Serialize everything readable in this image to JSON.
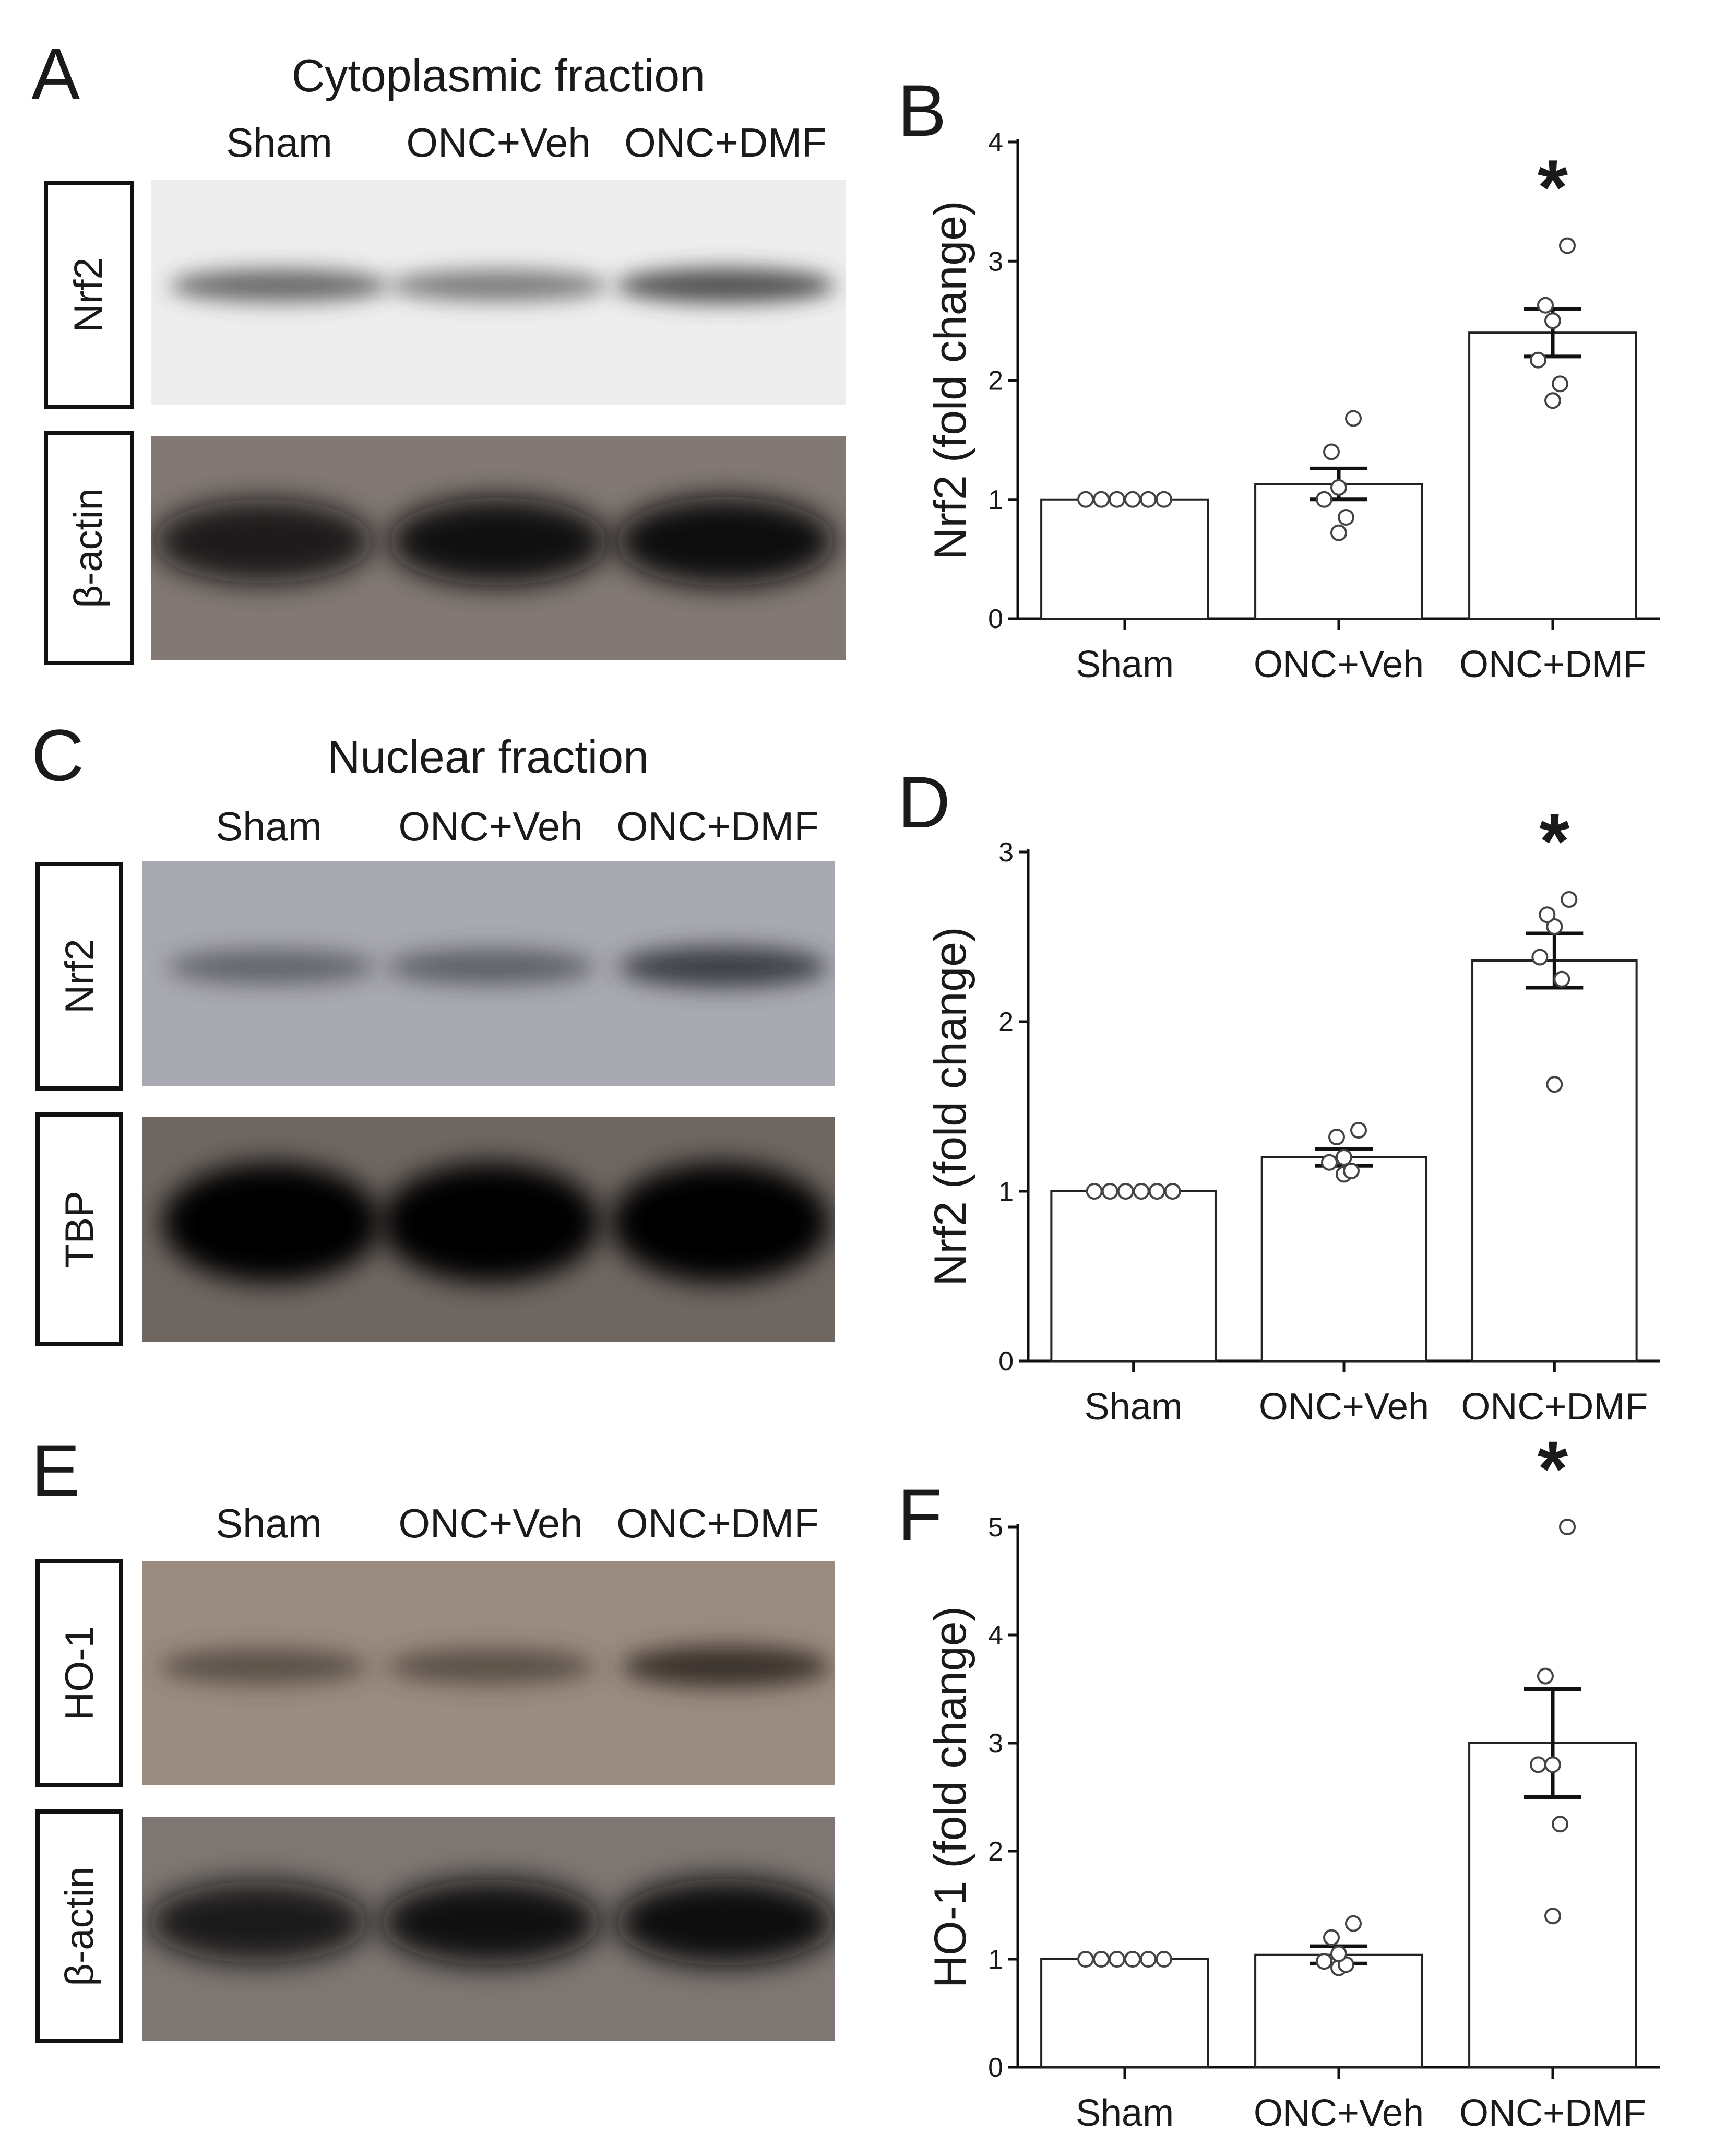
{
  "figure": {
    "panels": {
      "A": {
        "letter": "A",
        "title": "Cytoplasmic fraction",
        "lanes": [
          "Sham",
          "ONC+Veh",
          "ONC+DMF"
        ],
        "blots": [
          {
            "label": "Nrf2",
            "bg": "#ededed",
            "band": "#3c3c3c",
            "intensities": [
              0.6,
              0.45,
              0.8
            ]
          },
          {
            "label": "β-actin",
            "bg": "#837974",
            "band": "#0e0b0b",
            "intensities": [
              0.8,
              0.95,
              1.0
            ]
          }
        ]
      },
      "C": {
        "letter": "C",
        "title": "Nuclear fraction",
        "lanes": [
          "Sham",
          "ONC+Veh",
          "ONC+DMF"
        ],
        "blots": [
          {
            "label": "Nrf2",
            "bg": "#a9a9b1",
            "band": "#3a3a44",
            "intensities": [
              0.45,
              0.5,
              0.95
            ]
          },
          {
            "label": "TBP",
            "bg": "#6e6661",
            "band": "#050404",
            "intensities": [
              1.0,
              1.0,
              1.0
            ]
          }
        ]
      },
      "E": {
        "letter": "E",
        "title": "",
        "lanes": [
          "Sham",
          "ONC+Veh",
          "ONC+DMF"
        ],
        "blots": [
          {
            "label": "HO-1",
            "bg": "#9b8c81",
            "band": "#3b312b",
            "intensities": [
              0.5,
              0.5,
              1.0
            ]
          },
          {
            "label": "β-actin",
            "bg": "#7d7672",
            "band": "#0d0a0a",
            "intensities": [
              0.8,
              0.95,
              1.0
            ]
          }
        ]
      }
    }
  },
  "chart_data": [
    {
      "panel": "B",
      "type": "bar",
      "categories": [
        "Sham",
        "ONC+Veh",
        "ONC+DMF"
      ],
      "values": [
        1.0,
        1.13,
        2.4
      ],
      "errors": [
        0,
        0.13,
        0.2
      ],
      "points": [
        [
          1.0,
          1.0,
          1.0,
          1.0,
          1.0,
          1.0
        ],
        [
          0.72,
          0.85,
          1.0,
          1.1,
          1.4,
          1.68
        ],
        [
          1.83,
          1.97,
          2.17,
          2.5,
          2.63,
          3.13
        ]
      ],
      "significance": [
        "",
        "",
        "*"
      ],
      "ylabel": "Nrf2 (fold change)",
      "ylim": [
        0,
        4
      ],
      "yticks": [
        0,
        1,
        2,
        3,
        4
      ],
      "grid": false,
      "legend": "none"
    },
    {
      "panel": "D",
      "type": "bar",
      "categories": [
        "Sham",
        "ONC+Veh",
        "ONC+DMF"
      ],
      "values": [
        1.0,
        1.2,
        2.36
      ],
      "errors": [
        0,
        0.05,
        0.16
      ],
      "points": [
        [
          1.0,
          1.0,
          1.0,
          1.0,
          1.0,
          1.0
        ],
        [
          1.1,
          1.12,
          1.17,
          1.2,
          1.32,
          1.36
        ],
        [
          1.63,
          2.25,
          2.38,
          2.56,
          2.63,
          2.72
        ]
      ],
      "significance": [
        "",
        "",
        "*"
      ],
      "ylabel": "Nrf2 (fold change)",
      "ylim": [
        0,
        3
      ],
      "yticks": [
        0,
        1,
        2,
        3
      ],
      "grid": false,
      "legend": "none"
    },
    {
      "panel": "F",
      "type": "bar",
      "categories": [
        "Sham",
        "ONC+Veh",
        "ONC+DMF"
      ],
      "values": [
        1.0,
        1.04,
        3.0
      ],
      "errors": [
        0,
        0.08,
        0.5
      ],
      "points": [
        [
          1.0,
          1.0,
          1.0,
          1.0,
          1.0,
          1.0
        ],
        [
          0.92,
          0.95,
          0.98,
          1.05,
          1.2,
          1.33
        ],
        [
          1.4,
          2.25,
          2.8,
          2.8,
          3.62,
          5.0
        ]
      ],
      "significance": [
        "",
        "",
        "*"
      ],
      "ylabel": "HO-1 (fold change)",
      "ylim": [
        0,
        5
      ],
      "yticks": [
        0,
        1,
        2,
        3,
        4,
        5
      ],
      "grid": false,
      "legend": "none"
    }
  ]
}
